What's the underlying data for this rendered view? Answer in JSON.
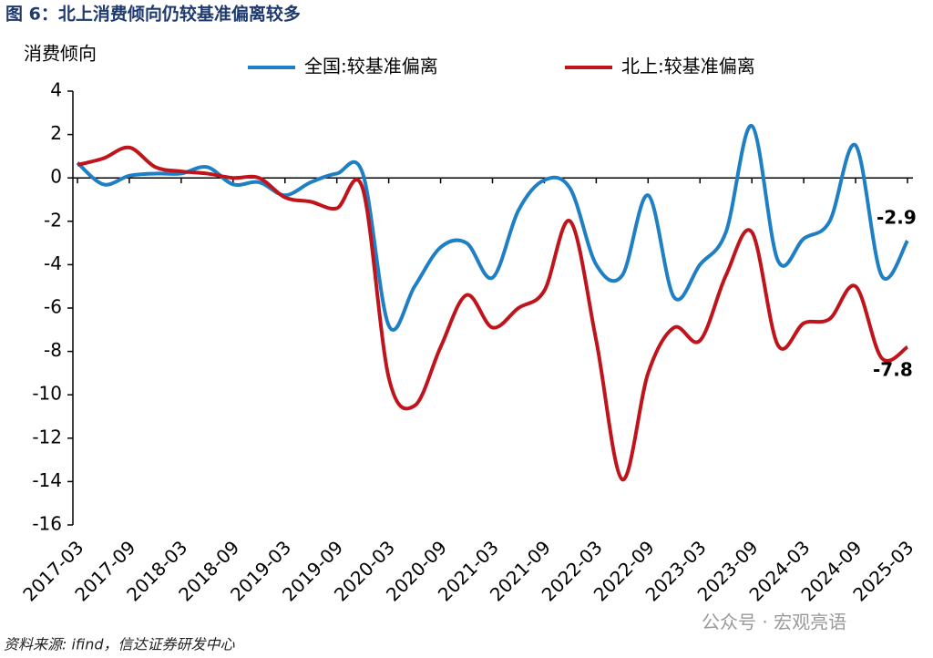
{
  "chart_data": {
    "type": "line",
    "title": "图 6：北上消费倾向仍较基准偏离较多",
    "y_label": "消费倾向",
    "source": "资料来源: ifind，信达证券研发中心",
    "watermark": "公众号 · 宏观亮语",
    "categories": [
      "2017-03",
      null,
      "2017-09",
      null,
      "2018-03",
      null,
      "2018-09",
      null,
      "2019-03",
      null,
      "2019-09",
      null,
      "2020-03",
      null,
      "2020-09",
      null,
      "2021-03",
      null,
      "2021-09",
      null,
      "2022-03",
      null,
      "2022-09",
      null,
      "2023-03",
      null,
      "2023-09",
      null,
      "2024-03",
      null,
      "2024-09",
      null,
      "2025-03"
    ],
    "series": [
      {
        "name": "全国:较基准偏离",
        "color": "#1f7fc4",
        "values": [
          0.7,
          -0.3,
          0.1,
          0.2,
          0.2,
          0.5,
          -0.3,
          -0.2,
          -0.8,
          -0.2,
          0.2,
          0.2,
          -6.8,
          -5.0,
          -3.2,
          -3.0,
          -4.6,
          -1.5,
          -0.1,
          -0.5,
          -4.0,
          -4.5,
          -0.8,
          -5.5,
          -4.0,
          -2.5,
          2.4,
          -3.8,
          -2.8,
          -2.0,
          1.5,
          -4.5,
          -2.9
        ]
      },
      {
        "name": "北上:较基准偏离",
        "color": "#c0141c",
        "values": [
          0.6,
          0.9,
          1.4,
          0.5,
          0.3,
          0.2,
          0.0,
          0.0,
          -0.9,
          -1.1,
          -1.4,
          -0.5,
          -9.2,
          -10.5,
          -7.8,
          -5.4,
          -6.9,
          -6.0,
          -5.2,
          -2.0,
          -7.5,
          -13.9,
          -9.0,
          -6.9,
          -7.5,
          -4.5,
          -2.5,
          -7.7,
          -6.7,
          -6.5,
          -5.0,
          -8.3,
          -7.8
        ]
      }
    ],
    "ylim": [
      -16,
      4
    ],
    "yticks": [
      -16,
      -14,
      -12,
      -10,
      -8,
      -6,
      -4,
      -2,
      0,
      2,
      4
    ],
    "legend": "top"
  }
}
